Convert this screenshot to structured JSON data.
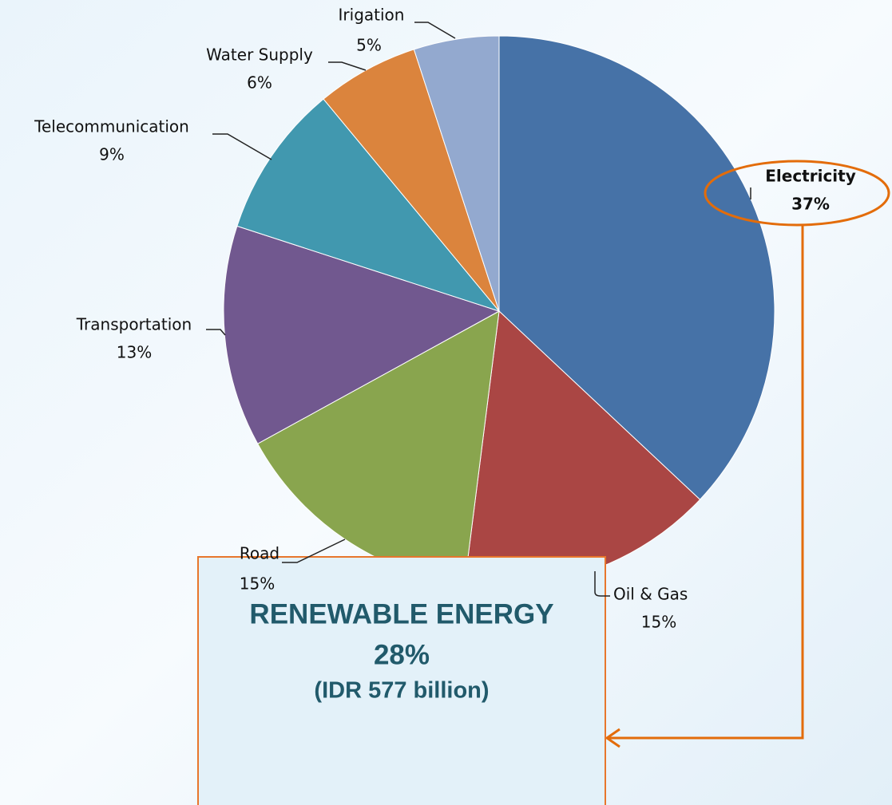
{
  "chart_data": {
    "type": "pie",
    "categories": [
      "Electricity",
      "Oil & Gas",
      "Road",
      "Transportation",
      "Telecommunication",
      "Water Supply",
      "Irigation"
    ],
    "values": [
      37,
      15,
      15,
      13,
      9,
      6,
      5
    ],
    "value_labels": [
      "37%",
      "15%",
      "15%",
      "13%",
      "9%",
      "6%",
      "5%"
    ],
    "colors": [
      "#4672a7",
      "#aa4644",
      "#89a54e",
      "#71588f",
      "#4198af",
      "#db843d",
      "#93a9cf"
    ],
    "start_angle": 0,
    "direction": "clockwise",
    "annotation": {
      "title": "RENEWABLE ENERGY",
      "share": "28%",
      "amount": "(IDR 577 billion)"
    }
  }
}
